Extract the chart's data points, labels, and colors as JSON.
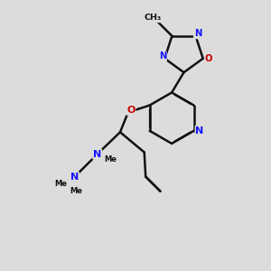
{
  "bg_color": "#dcdcdc",
  "bond_color": "#111111",
  "N_color": "#1414ff",
  "O_color": "#cc0000",
  "bond_lw": 1.8,
  "dbl_sep": 0.008,
  "fs": 8.0,
  "fig_w": 3.0,
  "fig_h": 3.0,
  "dpi": 100,
  "xlim": [
    0,
    10
  ],
  "ylim": [
    0,
    10
  ]
}
